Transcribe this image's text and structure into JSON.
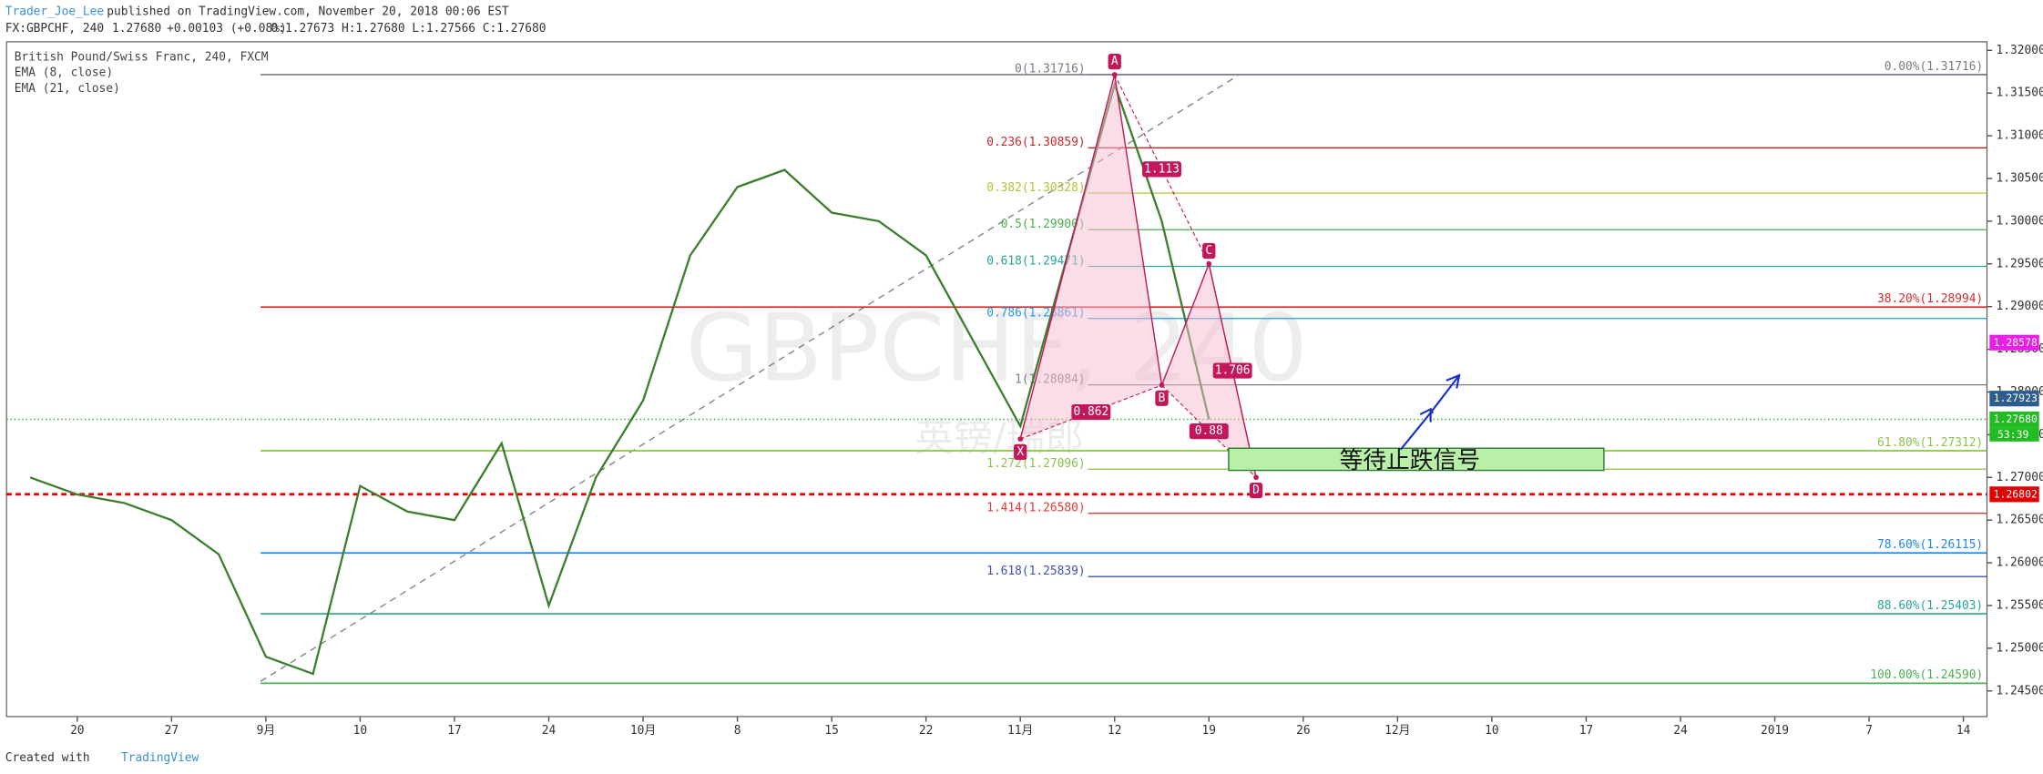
{
  "header": {
    "author": "Trader_Joe_Lee",
    "published": "published on TradingView.com, November 20, 2018 00:06 EST",
    "symbol": "FX:GBPCHF, 240",
    "last": "1.27680",
    "change": "+0.00103 (+0.08%)",
    "ohlc": "O:1.27673 H:1.27680 L:1.27566 C:1.27680"
  },
  "footer": {
    "created": "Created with",
    "brand": "TradingView"
  },
  "chart_data": {
    "type": "line",
    "legend": [
      "British Pound/Swiss Franc, 240, FXCM",
      "EMA (8, close)",
      "EMA (21, close)"
    ],
    "watermark": "GBPCHF, 240",
    "watermark_sub": "英镑/瑞郎",
    "annotation": "等待止跌信号",
    "categories": [
      null,
      "20",
      null,
      "27",
      null,
      "9月",
      null,
      "10",
      null,
      "17",
      null,
      "24",
      null,
      "10月",
      null,
      "8",
      null,
      "15",
      null,
      "22",
      null,
      "11月",
      null,
      "12",
      null,
      "19",
      null,
      "26",
      null,
      "12月",
      null,
      "10",
      null,
      "17",
      null,
      "24",
      null,
      "2019",
      null,
      "7",
      null,
      "14"
    ],
    "series": [
      {
        "color": "#3c7d2e",
        "values": [
          1.27,
          1.268,
          1.267,
          1.265,
          1.261,
          1.249,
          1.247,
          1.269,
          1.266,
          1.265,
          1.274,
          1.255,
          1.27,
          1.279,
          1.296,
          1.304,
          1.306,
          1.301,
          1.3,
          1.296,
          1.286,
          1.276,
          1.296,
          1.316,
          1.3,
          1.2768,
          null,
          null,
          null,
          null,
          null,
          null,
          null,
          null,
          null,
          null,
          null,
          null,
          null,
          null,
          null,
          null
        ]
      },
      {
        "color": "#c2185b",
        "point_labels": [
          null,
          null,
          null,
          null,
          null,
          null,
          null,
          null,
          null,
          null,
          null,
          null,
          null,
          null,
          null,
          null,
          null,
          null,
          null,
          null,
          null,
          "X",
          null,
          "A",
          "B",
          "C",
          "D",
          null,
          null,
          null,
          null,
          null,
          null,
          null,
          null,
          null,
          null,
          null,
          null,
          null,
          null,
          null
        ],
        "values": [
          null,
          null,
          null,
          null,
          null,
          null,
          null,
          null,
          null,
          null,
          null,
          null,
          null,
          null,
          null,
          null,
          null,
          null,
          null,
          null,
          null,
          1.2745,
          null,
          1.31716,
          1.2808,
          1.295,
          1.27,
          null,
          null,
          null,
          null,
          null,
          null,
          null,
          null,
          null,
          null,
          null,
          null,
          null,
          null,
          null
        ]
      }
    ],
    "ratios": [
      0.862,
      1.113,
      0.88,
      1.706
    ],
    "levels": [
      {
        "value": 1.31716,
        "label": "0.00%(1.31716)",
        "color": "#787b86"
      },
      {
        "value": 1.28994,
        "label": "38.20%(1.28994)",
        "color": "#d32f2f"
      },
      {
        "value": 1.27312,
        "label": "61.80%(1.27312)",
        "color": "#8bc34a"
      },
      {
        "value": 1.26115,
        "label": "78.60%(1.26115)",
        "color": "#1e88e5"
      },
      {
        "value": 1.25403,
        "label": "88.60%(1.25403)",
        "color": "#26a69a"
      },
      {
        "value": 1.2459,
        "label": "100.00%(1.24590)",
        "color": "#4caf50"
      }
    ],
    "pattern_levels": [
      {
        "value": 1.31716,
        "label": "0(1.31716)",
        "color": "#787b86"
      },
      {
        "value": 1.30859,
        "label": "0.236(1.30859)",
        "color": "#c62828"
      },
      {
        "value": 1.30328,
        "label": "0.382(1.30328)",
        "color": "#b5c436"
      },
      {
        "value": 1.299,
        "label": "0.5(1.29900)",
        "color": "#4caf50"
      },
      {
        "value": 1.29471,
        "label": "0.618(1.29471)",
        "color": "#26a69a"
      },
      {
        "value": 1.28861,
        "label": "0.786(1.28861)",
        "color": "#2196f3"
      },
      {
        "value": 1.28084,
        "label": "1(1.28084)",
        "color": "#787b86"
      },
      {
        "value": 1.27096,
        "label": "1.272(1.27096)",
        "color": "#8bc34a"
      },
      {
        "value": 1.2658,
        "label": "1.414(1.26580)",
        "color": "#e53935"
      },
      {
        "value": 1.25839,
        "label": "1.618(1.25839)",
        "color": "#3f51b5"
      }
    ],
    "stop_line": {
      "value": 1.26802,
      "label": "1.26802",
      "color": "#e00000"
    },
    "price_tags": [
      {
        "value": 1.28578,
        "label": "1.28578",
        "color": "#e91ee9"
      },
      {
        "value": 1.27923,
        "label": "1.27923",
        "color": "#2d5d8e"
      },
      {
        "value": 1.2768,
        "label": "1.27680",
        "color": "#22bb22"
      }
    ],
    "countdown": "53:39",
    "ylim": [
      1.242,
      1.321
    ],
    "yticks": [
      {
        "value": 1.245,
        "label": "1.24500"
      },
      {
        "value": 1.25,
        "label": "1.25000"
      },
      {
        "value": 1.255,
        "label": "1.25500"
      },
      {
        "value": 1.26,
        "label": "1.26000"
      },
      {
        "value": 1.265,
        "label": "1.26500"
      },
      {
        "value": 1.27,
        "label": "1.27000"
      },
      {
        "value": 1.275,
        "label": "1.27500"
      },
      {
        "value": 1.28,
        "label": "1.28000"
      },
      {
        "value": 1.285,
        "label": "1.28500"
      },
      {
        "value": 1.29,
        "label": "1.29000"
      },
      {
        "value": 1.295,
        "label": "1.29500"
      },
      {
        "value": 1.3,
        "label": "1.30000"
      },
      {
        "value": 1.305,
        "label": "1.30500"
      },
      {
        "value": 1.31,
        "label": "1.31000"
      },
      {
        "value": 1.315,
        "label": "1.31500"
      },
      {
        "value": 1.32,
        "label": "1.32000"
      }
    ]
  }
}
